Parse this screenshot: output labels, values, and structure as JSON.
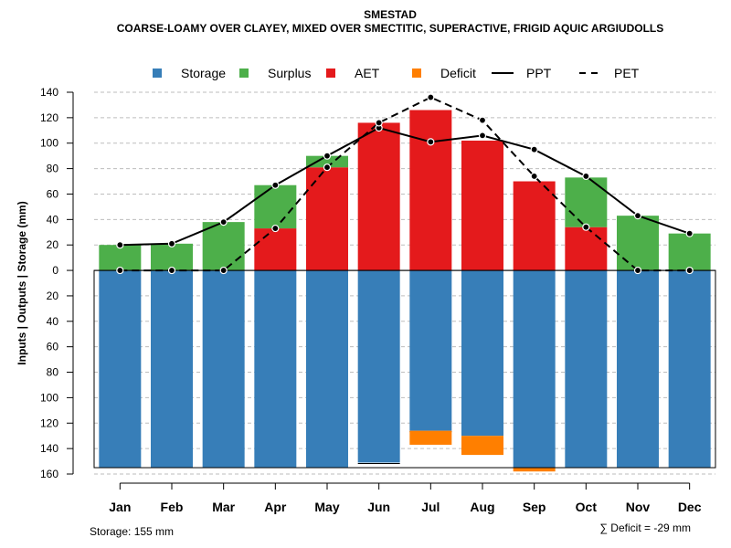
{
  "chart_data": {
    "type": "bar",
    "title": "SMESTAD",
    "subtitle": "COARSE-LOAMY OVER CLAYEY, MIXED OVER SMECTITIC, SUPERACTIVE, FRIGID AQUIC ARGIUDOLLS",
    "ylabel": "Inputs | Outputs | Storage     (mm)",
    "ylim": [
      -160,
      140
    ],
    "yticks": [
      140,
      120,
      100,
      80,
      60,
      40,
      20,
      0,
      -20,
      -40,
      -60,
      -80,
      -100,
      -120,
      -140,
      -160
    ],
    "ytick_labels": [
      "140",
      "120",
      "100",
      "80",
      "60",
      "40",
      "20",
      "0",
      "20",
      "40",
      "60",
      "80",
      "100",
      "120",
      "140",
      "160"
    ],
    "grid": true,
    "legend_position": "top",
    "categories": [
      "Jan",
      "Feb",
      "Mar",
      "Apr",
      "May",
      "Jun",
      "Jul",
      "Aug",
      "Sep",
      "Oct",
      "Nov",
      "Dec"
    ],
    "legend": [
      {
        "name": "Storage",
        "kind": "box",
        "color": "#377EB8"
      },
      {
        "name": "Surplus",
        "kind": "box",
        "color": "#4DAF4A"
      },
      {
        "name": "AET",
        "kind": "box",
        "color": "#E41A1C"
      },
      {
        "name": "Deficit",
        "kind": "box",
        "color": "#FF7F00"
      },
      {
        "name": "PPT",
        "kind": "solid-line",
        "color": "#000000"
      },
      {
        "name": "PET",
        "kind": "dashed-line",
        "color": "#000000"
      }
    ],
    "series": [
      {
        "name": "Storage",
        "values": [
          155,
          155,
          155,
          155,
          155,
          151,
          126,
          130,
          155,
          155,
          155,
          155
        ]
      },
      {
        "name": "Deficit",
        "values": [
          0,
          0,
          0,
          0,
          0,
          0,
          11,
          15,
          3,
          0,
          0,
          0
        ]
      },
      {
        "name": "AET",
        "values": [
          0,
          0,
          0,
          33,
          81,
          116,
          126,
          102,
          70,
          34,
          0,
          0
        ]
      },
      {
        "name": "Surplus",
        "values": [
          20,
          21,
          38,
          34,
          9,
          0,
          0,
          0,
          0,
          39,
          43,
          29
        ]
      },
      {
        "name": "PPT",
        "values": [
          20,
          21,
          38,
          67,
          90,
          112,
          101,
          106,
          95,
          74,
          43,
          29
        ]
      },
      {
        "name": "PET",
        "values": [
          0,
          0,
          0,
          33,
          81,
          116,
          136,
          118,
          74,
          34,
          0,
          0
        ]
      }
    ],
    "storage_capacity": 155,
    "annotations": {
      "storage": "Storage: 155 mm",
      "deficit": "∑ Deficit = -29 mm"
    }
  }
}
